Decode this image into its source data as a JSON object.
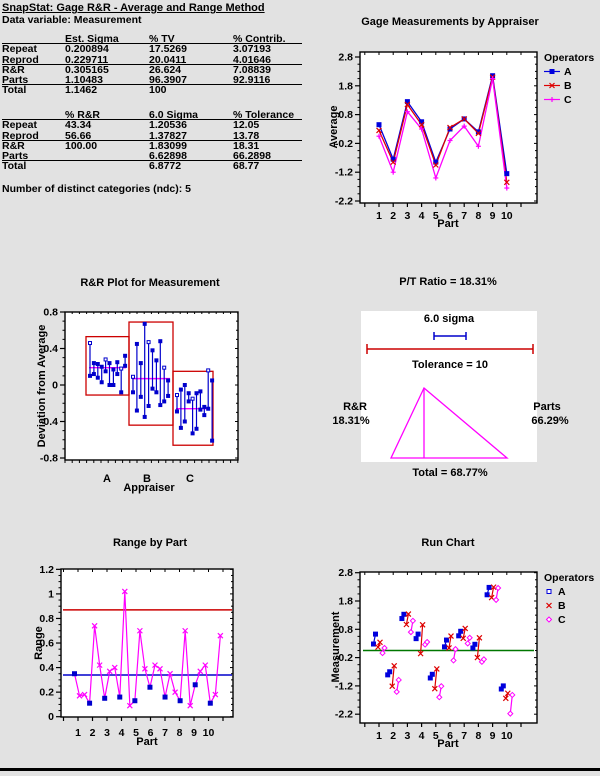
{
  "window": {
    "background": "#e2e2e2"
  },
  "header": {
    "title": "SnapStat: Gage R&R - Average and Range Method",
    "data_variable": "Data variable: Measurement",
    "variance_table": {
      "columns": [
        "",
        "Est. Sigma",
        "% TV",
        "% Contrib."
      ],
      "rows": [
        [
          "Repeat",
          "0.200894",
          "17.5269",
          "3.07193"
        ],
        [
          "Reprod",
          "0.229711",
          "20.0411",
          "4.01646"
        ],
        [
          "R&R",
          "0.305165",
          "26.624",
          "7.08839"
        ],
        [
          "Parts",
          "1.10483",
          "96.3907",
          "92.9116"
        ],
        [
          "Total",
          "1.1462",
          "100",
          ""
        ]
      ]
    },
    "tolerance_table": {
      "columns": [
        "",
        "% R&R",
        "6.0 Sigma",
        "% Tolerance"
      ],
      "rows": [
        [
          "Repeat",
          "43.34",
          "1.20536",
          "12.05"
        ],
        [
          "Reprod",
          "56.66",
          "1.37827",
          "13.78"
        ],
        [
          "R&R",
          "100.00",
          "1.83099",
          "18.31"
        ],
        [
          "Parts",
          "",
          "6.62898",
          "66.2898"
        ],
        [
          "Total",
          "",
          "6.8772",
          "68.77"
        ]
      ]
    },
    "ndc_note": "Number of distinct categories (ndc): 5"
  },
  "colors": {
    "operator_a_blue": "#0000dd",
    "operator_b_red": "#dd0000",
    "operator_c_magenta": "#ff00ff",
    "segment_blue": "#0000cc",
    "box_red": "#cc0000",
    "mean_line_magenta": "#ff00ff",
    "center_line_blue": "#0000cc",
    "ucl_red": "#cc0000",
    "center_line_green": "#007700",
    "triangle_magenta": "#ff00ff",
    "tolerance_bracket_red": "#cc0000",
    "sigma_bracket_blue": "#0000cc"
  },
  "chart_data": [
    {
      "id": "gage_measurements",
      "type": "line",
      "title": "Gage Measurements by Appraiser",
      "xlabel": "Part",
      "ylabel": "Average",
      "x": [
        1,
        2,
        3,
        4,
        5,
        6,
        7,
        8,
        9,
        10
      ],
      "yticks": [
        2.8,
        1.8,
        0.8,
        -0.2,
        -1.2,
        -2.2
      ],
      "ylim": [
        -2.2,
        2.8
      ],
      "legend": {
        "title": "Operators",
        "position": "right"
      },
      "series": [
        {
          "name": "A",
          "marker": "square",
          "color": "#0000dd",
          "values": [
            0.45,
            -0.75,
            1.25,
            0.55,
            -0.85,
            0.3,
            0.65,
            0.2,
            2.15,
            -1.25
          ]
        },
        {
          "name": "B",
          "marker": "x",
          "color": "#dd0000",
          "values": [
            0.25,
            -0.85,
            1.15,
            0.45,
            -0.95,
            0.35,
            0.65,
            0.15,
            2.1,
            -1.55
          ]
        },
        {
          "name": "C",
          "marker": "plus",
          "color": "#ff00ff",
          "values": [
            0.05,
            -1.2,
            0.9,
            0.3,
            -1.4,
            -0.1,
            0.4,
            -0.3,
            2.05,
            -1.75
          ]
        }
      ]
    },
    {
      "id": "rr_plot",
      "type": "range-bar",
      "title": "R&R Plot for Measurement",
      "xlabel": "Appraiser",
      "ylabel": "Deviation from Average",
      "categories": [
        "A",
        "B",
        "C"
      ],
      "yticks": [
        0.8,
        0.4,
        0,
        -0.4,
        -0.8
      ],
      "ylim": [
        -0.8,
        0.8
      ],
      "groups": [
        {
          "name": "A",
          "mean": 0.19,
          "box": [
            -0.11,
            0.53
          ],
          "segments": [
            [
              0.1,
              0.46
            ],
            [
              0.12,
              0.24
            ],
            [
              0.08,
              0.23
            ],
            [
              0.03,
              0.2
            ],
            [
              0.15,
              0.28
            ],
            [
              0.0,
              0.24
            ],
            [
              0.0,
              0.17
            ],
            [
              0.12,
              0.25
            ],
            [
              -0.08,
              0.18
            ],
            [
              0.21,
              0.32
            ]
          ]
        },
        {
          "name": "B",
          "mean": 0.07,
          "box": [
            -0.44,
            0.69
          ],
          "segments": [
            [
              -0.08,
              0.09
            ],
            [
              -0.28,
              0.45
            ],
            [
              -0.13,
              0.24
            ],
            [
              -0.35,
              0.67
            ],
            [
              -0.23,
              0.47
            ],
            [
              -0.04,
              0.38
            ],
            [
              -0.08,
              0.27
            ],
            [
              -0.22,
              0.48
            ],
            [
              -0.18,
              0.19
            ],
            [
              -0.12,
              0.05
            ]
          ]
        },
        {
          "name": "C",
          "mean": -0.26,
          "box": [
            -0.66,
            0.15
          ],
          "segments": [
            [
              -0.29,
              -0.11
            ],
            [
              -0.47,
              -0.05
            ],
            [
              -0.4,
              0.0
            ],
            [
              -0.18,
              -0.09
            ],
            [
              -0.53,
              -0.15
            ],
            [
              -0.48,
              -0.09
            ],
            [
              -0.27,
              -0.07
            ],
            [
              -0.33,
              -0.24
            ],
            [
              -0.26,
              0.16
            ],
            [
              -0.61,
              0.05
            ]
          ]
        }
      ]
    },
    {
      "id": "pt_ratio",
      "type": "diagram",
      "title": "P/T Ratio = 18.31%",
      "sigma_label": "6.0 sigma",
      "tolerance_label": "Tolerance = 10",
      "rr_label": "R&R",
      "rr_pct": "18.31%",
      "parts_label": "Parts",
      "parts_pct": "66.29%",
      "total_label": "Total = 68.77%"
    },
    {
      "id": "range_by_part",
      "type": "line",
      "title": "Range by Part",
      "xlabel": "Part",
      "ylabel": "Range",
      "x_parts": [
        1,
        2,
        3,
        4,
        5,
        6,
        7,
        8,
        9,
        10
      ],
      "yticks": [
        0,
        0.2,
        0.4,
        0.6,
        0.8,
        1,
        1.2
      ],
      "ylim": [
        0,
        1.2
      ],
      "center_line": 0.34,
      "ucl": 0.87,
      "values": [
        0.35,
        0.17,
        0.18,
        0.11,
        0.74,
        0.42,
        0.15,
        0.37,
        0.4,
        0.16,
        1.02,
        0.09,
        0.13,
        0.7,
        0.39,
        0.24,
        0.42,
        0.39,
        0.16,
        0.35,
        0.2,
        0.13,
        0.7,
        0.09,
        0.26,
        0.37,
        0.42,
        0.11,
        0.18,
        0.66
      ]
    },
    {
      "id": "run_chart",
      "type": "run",
      "title": "Run Chart",
      "xlabel": "Part",
      "ylabel": "Measurement",
      "x": [
        1,
        2,
        3,
        4,
        5,
        6,
        7,
        8,
        9,
        10
      ],
      "yticks": [
        2.8,
        1.8,
        0.8,
        -0.2,
        -1.2,
        -2.2
      ],
      "ylim": [
        -2.2,
        2.8
      ],
      "center_line": 0.05,
      "legend": {
        "title": "Operators",
        "position": "right"
      },
      "series": [
        {
          "name": "A",
          "marker": "square",
          "color": "#0000dd",
          "pairs": [
            [
              0.28,
              0.63
            ],
            [
              -0.81,
              -0.7
            ],
            [
              1.18,
              1.33
            ],
            [
              0.47,
              0.63
            ],
            [
              -0.92,
              -0.79
            ],
            [
              0.18,
              0.42
            ],
            [
              0.57,
              0.73
            ],
            [
              0.14,
              0.27
            ],
            [
              2.02,
              2.28
            ],
            [
              -1.31,
              -1.2
            ]
          ]
        },
        {
          "name": "B",
          "marker": "x",
          "color": "#dd0000",
          "pairs": [
            [
              0.17,
              0.34
            ],
            [
              -1.21,
              -0.49
            ],
            [
              0.97,
              1.34
            ],
            [
              -0.06,
              0.96
            ],
            [
              -1.3,
              -0.6
            ],
            [
              0.14,
              0.56
            ],
            [
              0.48,
              0.83
            ],
            [
              -0.2,
              0.5
            ],
            [
              1.92,
              2.29
            ],
            [
              -1.64,
              -1.46
            ]
          ]
        },
        {
          "name": "C",
          "marker": "diamond",
          "color": "#ff00ff",
          "pairs": [
            [
              -0.04,
              0.14
            ],
            [
              -1.41,
              -0.99
            ],
            [
              0.7,
              1.1
            ],
            [
              0.26,
              0.35
            ],
            [
              -1.6,
              -1.21
            ],
            [
              -0.3,
              0.1
            ],
            [
              0.3,
              0.5
            ],
            [
              -0.35,
              -0.26
            ],
            [
              1.84,
              2.26
            ],
            [
              -2.18,
              -1.52
            ]
          ]
        }
      ]
    }
  ]
}
